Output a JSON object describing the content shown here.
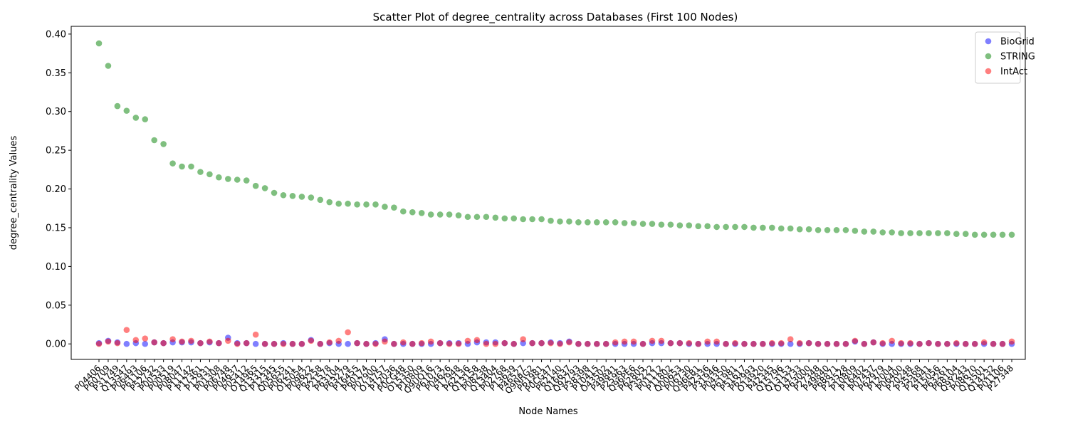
{
  "chart_data": {
    "type": "scatter",
    "title": "Scatter Plot of degree_centrality across Databases (First 100 Nodes)",
    "xlabel": "Node Names",
    "ylabel": "degree_centrality Values",
    "ylim": [
      -0.02,
      0.41
    ],
    "yticks": [
      0.0,
      0.05,
      0.1,
      0.15,
      0.2,
      0.25,
      0.3,
      0.35,
      0.4
    ],
    "ytick_labels": [
      "0.00",
      "0.05",
      "0.10",
      "0.15",
      "0.20",
      "0.25",
      "0.30",
      "0.35",
      "0.40"
    ],
    "grid": false,
    "legend_position": "top-right",
    "categories": [
      "P04406",
      "P60709",
      "P31749",
      "Q13547",
      "P06493",
      "P61106",
      "P52732",
      "P00533",
      "P00519",
      "P08047",
      "P11142",
      "P17361",
      "P12931",
      "P01308",
      "P06748",
      "P04637",
      "P05412",
      "O14965",
      "Q13315",
      "P12345",
      "Q05655",
      "P06241",
      "O15054",
      "P09622",
      "P62258",
      "P21578",
      "P63104",
      "P63279",
      "P16455",
      "P60174",
      "P07900",
      "O14757",
      "P12036",
      "P0CG48",
      "O15350",
      "P10809",
      "Q9UQ16",
      "P61073",
      "P04626",
      "P17948",
      "P62136",
      "Q13158",
      "P08238",
      "Q13404",
      "P02768",
      "P13639",
      "P46527",
      "Q9NRG2",
      "P61981",
      "P0CG47",
      "P62140",
      "Q16637",
      "Q92793",
      "P38398",
      "P10415",
      "O43502",
      "P49841",
      "P25963",
      "Q96PE6",
      "P62805",
      "P35222",
      "P01112",
      "P11802",
      "Q00653",
      "P06730",
      "Q96EB1",
      "P42336",
      "P31946",
      "P04350",
      "P61981",
      "P51617",
      "P62993",
      "O14920",
      "P42345",
      "Q15796",
      "Q13153",
      "O14733",
      "P63000",
      "P27348",
      "P49840",
      "P68871",
      "P23528",
      "P10809",
      "P16402",
      "P07437",
      "P62979",
      "P12004",
      "P06400",
      "P20248",
      "P35568",
      "P24941",
      "P15056",
      "P63261",
      "P68104",
      "Q9Y243",
      "P08670",
      "Q13501",
      "Q14232",
      "P01106",
      "P27348"
    ],
    "tick_labels": [
      "P04406",
      "P60709",
      "P31749",
      "Q13547",
      "P06493",
      "P61106",
      "P52732",
      "P00533",
      "P00519",
      "P08047",
      "P11142",
      "P17361",
      "P12931",
      "P01308",
      "P06748",
      "P04637",
      "P05412",
      "O14965",
      "Q13315",
      "P12345",
      "Q05655",
      "P06241",
      "O15054",
      "P09622",
      "P62258",
      "P21578",
      "P63104",
      "P63279",
      "P16455",
      "P60174",
      "P07900",
      "O14757",
      "P12036",
      "P0CG48",
      "O15350",
      "P10809",
      "Q9UQ16",
      "P61073",
      "P04626",
      "P17948",
      "P62136",
      "Q13158",
      "P08238",
      "Q13404",
      "P02768",
      "P13639",
      "P46527",
      "Q9NRG2",
      "P61981",
      "P0CG47",
      "P62140",
      "Q16637",
      "Q92793",
      "P38398",
      "P10415",
      "O43502",
      "P49841",
      "P25963",
      "Q96PE6",
      "P62805",
      "P35222",
      "P01112",
      "P11802",
      "Q00653",
      "P06730",
      "Q96EB1",
      "P42336",
      "P31946",
      "P04350",
      "P61981",
      "P51617",
      "P62993",
      "O14920",
      "P42345",
      "Q15796",
      "Q13153",
      "O14733",
      "P63000",
      "P27348",
      "P49840",
      "P68871",
      "P23528",
      "P10809",
      "P16402",
      "P07437",
      "P62979",
      "P12004",
      "P06400",
      "P20248",
      "P35568",
      "P24941",
      "P15056",
      "P63261",
      "P68104",
      "Q9Y243",
      "P08670",
      "Q13501",
      "Q14232",
      "P01106",
      "P27348"
    ],
    "series": [
      {
        "name": "BioGrid",
        "color": "#0000ff",
        "values": [
          0.001,
          0.004,
          0.002,
          0.0,
          0.001,
          0.0,
          0.002,
          0.001,
          0.002,
          0.002,
          0.002,
          0.001,
          0.002,
          0.001,
          0.008,
          0.001,
          0.001,
          0.0,
          0.0,
          0.0,
          0.001,
          0.0,
          0.0,
          0.005,
          0.0,
          0.001,
          0.0,
          0.0,
          0.001,
          0.0,
          0.001,
          0.006,
          0.0,
          0.0,
          0.0,
          0.0,
          0.0,
          0.001,
          0.001,
          0.001,
          0.0,
          0.002,
          0.002,
          0.002,
          0.001,
          0.0,
          0.001,
          0.001,
          0.001,
          0.002,
          0.001,
          0.003,
          0.0,
          0.0,
          0.0,
          0.0,
          0.0,
          0.0,
          0.0,
          0.0,
          0.001,
          0.001,
          0.001,
          0.001,
          0.0,
          0.0,
          0.0,
          0.0,
          0.0,
          0.0,
          0.0,
          0.0,
          0.0,
          0.0,
          0.0,
          0.0,
          0.0,
          0.001,
          0.0,
          0.0,
          0.0,
          0.0,
          0.003,
          0.0,
          0.002,
          0.0,
          0.0,
          0.0,
          0.0,
          0.0,
          0.001,
          0.0,
          0.0,
          0.0,
          0.0,
          0.0,
          0.0,
          0.0,
          0.0,
          0.0
        ]
      },
      {
        "name": "STRING",
        "color": "#008000",
        "values": [
          0.388,
          0.359,
          0.307,
          0.301,
          0.292,
          0.29,
          0.263,
          0.258,
          0.233,
          0.229,
          0.229,
          0.222,
          0.219,
          0.215,
          0.213,
          0.212,
          0.211,
          0.204,
          0.201,
          0.195,
          0.192,
          0.191,
          0.19,
          0.189,
          0.186,
          0.183,
          0.181,
          0.181,
          0.18,
          0.18,
          0.18,
          0.177,
          0.176,
          0.171,
          0.17,
          0.169,
          0.167,
          0.167,
          0.167,
          0.166,
          0.164,
          0.164,
          0.164,
          0.163,
          0.162,
          0.162,
          0.161,
          0.161,
          0.161,
          0.159,
          0.158,
          0.158,
          0.157,
          0.157,
          0.157,
          0.157,
          0.157,
          0.156,
          0.156,
          0.155,
          0.155,
          0.154,
          0.154,
          0.153,
          0.153,
          0.152,
          0.152,
          0.151,
          0.151,
          0.151,
          0.151,
          0.15,
          0.15,
          0.15,
          0.149,
          0.149,
          0.148,
          0.148,
          0.147,
          0.147,
          0.147,
          0.147,
          0.146,
          0.145,
          0.145,
          0.144,
          0.144,
          0.143,
          0.143,
          0.143,
          0.143,
          0.143,
          0.143,
          0.142,
          0.142,
          0.141,
          0.141,
          0.141,
          0.141,
          0.141
        ]
      },
      {
        "name": "IntAct",
        "color": "#ff0000",
        "values": [
          0.0,
          0.003,
          0.001,
          0.018,
          0.005,
          0.007,
          0.002,
          0.001,
          0.006,
          0.003,
          0.004,
          0.001,
          0.003,
          0.001,
          0.004,
          0.0,
          0.001,
          0.012,
          0.0,
          0.0,
          0.0,
          0.0,
          0.0,
          0.004,
          0.0,
          0.002,
          0.004,
          0.015,
          0.001,
          0.0,
          0.0,
          0.003,
          0.0,
          0.002,
          0.0,
          0.001,
          0.003,
          0.001,
          0.0,
          0.0,
          0.004,
          0.005,
          0.0,
          0.0,
          0.001,
          0.0,
          0.006,
          0.001,
          0.001,
          0.001,
          0.0,
          0.002,
          0.0,
          0.0,
          0.0,
          0.0,
          0.002,
          0.003,
          0.003,
          0.0,
          0.004,
          0.004,
          0.001,
          0.001,
          0.001,
          0.0,
          0.003,
          0.003,
          0.0,
          0.001,
          0.0,
          0.0,
          0.0,
          0.001,
          0.001,
          0.006,
          0.001,
          0.001,
          0.0,
          0.0,
          0.0,
          0.0,
          0.004,
          0.0,
          0.002,
          0.001,
          0.004,
          0.001,
          0.001,
          0.0,
          0.001,
          0.0,
          0.0,
          0.001,
          0.0,
          0.0,
          0.002,
          0.0,
          0.0,
          0.003
        ]
      }
    ]
  }
}
